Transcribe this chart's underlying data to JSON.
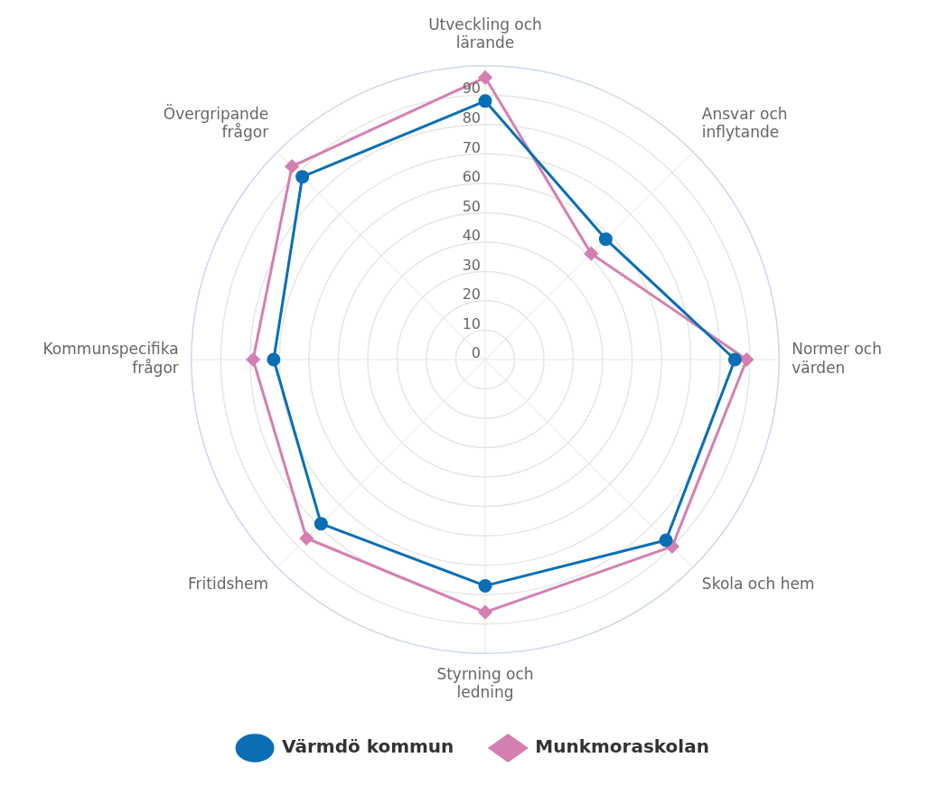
{
  "chart_data": {
    "type": "radar",
    "categories": [
      "Utveckling och lärande",
      "Ansvar och inflytande",
      "Normer och värden",
      "Skola och hem",
      "Styrning och ledning",
      "Fritidshem",
      "Kommunspecifika frågor",
      "Övergripande frågor"
    ],
    "series": [
      {
        "name": "Värmdö kommun",
        "color": "#0a6eb4",
        "marker": "circle",
        "values": [
          88,
          58,
          85,
          87,
          77,
          79,
          72,
          88
        ]
      },
      {
        "name": "Munkmoraskolan",
        "color": "#d47fb0",
        "marker": "diamond",
        "values": [
          96,
          51,
          89,
          90,
          86,
          86,
          79,
          93
        ]
      }
    ],
    "ylim": [
      0,
      100
    ],
    "yticks": [
      0,
      10,
      20,
      30,
      40,
      50,
      60,
      70,
      80,
      90
    ],
    "grid": true,
    "legend": "bottom"
  }
}
